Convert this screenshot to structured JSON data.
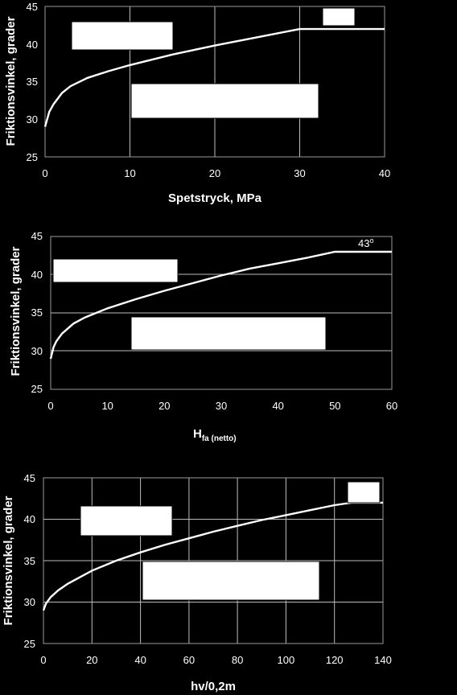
{
  "chart_data": [
    {
      "type": "line",
      "ylabel": "Friktionsvinkel, grader",
      "xlabel": "Spetstryck, MPa",
      "xlim": [
        0,
        40
      ],
      "ylim": [
        25,
        45
      ],
      "xticks": [
        "0",
        "10",
        "20",
        "30",
        "40"
      ],
      "yticks": [
        "25",
        "30",
        "35",
        "40",
        "45"
      ],
      "grid": "vertical",
      "series": [
        {
          "x": [
            0,
            0.5,
            1,
            2,
            3,
            5,
            7.5,
            10,
            15,
            20,
            25,
            30,
            40
          ],
          "values": [
            29,
            31,
            32,
            33.5,
            34.4,
            35.5,
            36.4,
            37.2,
            38.6,
            39.8,
            40.9,
            42,
            42
          ]
        }
      ]
    },
    {
      "type": "line",
      "ylabel": "Friktionsvinkel, grader",
      "xlabel": "H",
      "xlabel_sub": "fa (netto)",
      "xlim": [
        0,
        60
      ],
      "ylim": [
        25,
        45
      ],
      "xticks": [
        "0",
        "10",
        "20",
        "30",
        "40",
        "50",
        "60"
      ],
      "yticks": [
        "25",
        "30",
        "35",
        "40",
        "45"
      ],
      "grid": "horizontal",
      "annotation": "43",
      "annotation_sup": "o",
      "series": [
        {
          "x": [
            0,
            0.5,
            1,
            2,
            4,
            6,
            10,
            15,
            20,
            25,
            30,
            35,
            40,
            45,
            50,
            60
          ],
          "values": [
            29,
            30.5,
            31.3,
            32.3,
            33.6,
            34.4,
            35.6,
            36.8,
            37.9,
            38.9,
            39.9,
            40.8,
            41.5,
            42.2,
            43,
            43
          ]
        }
      ]
    },
    {
      "type": "line",
      "ylabel": "Friktionsvinkel, grader",
      "xlabel": "hv/0,2m",
      "xlim": [
        0,
        140
      ],
      "ylim": [
        25,
        45
      ],
      "xticks": [
        "0",
        "20",
        "40",
        "60",
        "80",
        "100",
        "120",
        "140"
      ],
      "yticks": [
        "25",
        "30",
        "35",
        "40",
        "45"
      ],
      "grid": "both",
      "series": [
        {
          "x": [
            0,
            1,
            3,
            6,
            10,
            20,
            30,
            40,
            50,
            60,
            70,
            80,
            90,
            100,
            110,
            120,
            127,
            140
          ],
          "values": [
            29,
            29.8,
            30.6,
            31.4,
            32.2,
            33.8,
            35,
            36,
            36.9,
            37.7,
            38.5,
            39.2,
            39.9,
            40.5,
            41.1,
            41.7,
            42,
            42
          ]
        }
      ]
    }
  ]
}
